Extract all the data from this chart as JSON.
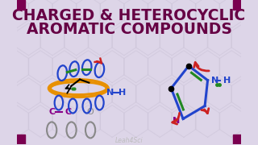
{
  "title_line1": "CHARGED & HETEROCYCLIC",
  "title_line2": "AROMATIC COMPOUNDS",
  "title_color": "#660044",
  "title_fontsize": 13.5,
  "bg_color": "#ddd5e8",
  "watermark": "Leah4Sci",
  "watermark_color": "#bbbbbb",
  "hex_color": "#ccc4d8",
  "corner_color": "#7a0050",
  "orange_color": "#e89000",
  "blue_color": "#2244cc",
  "green_color": "#228822",
  "red_color": "#cc2222",
  "purple_color": "#880088",
  "gray_color": "#888888"
}
